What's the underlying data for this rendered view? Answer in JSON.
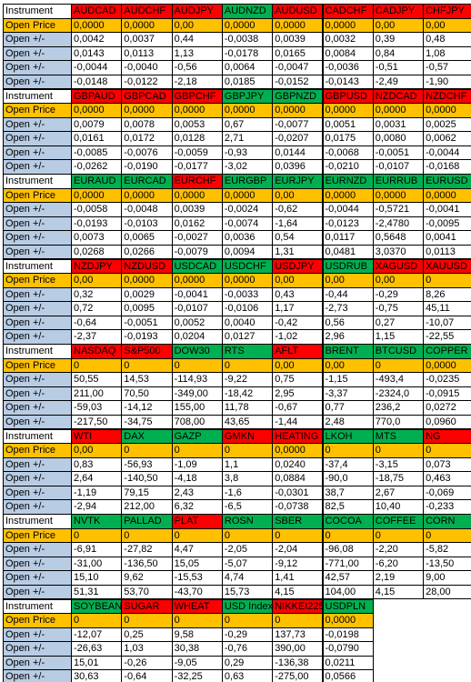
{
  "blocks": [
    {
      "header": "Instrument",
      "open_price_label": "Open Price",
      "instruments": [
        {
          "name": "AUDCAD",
          "color": "#ff0000"
        },
        {
          "name": "AUDCHF",
          "color": "#ff0000"
        },
        {
          "name": "AUDJPY",
          "color": "#ff0000"
        },
        {
          "name": "AUDNZD",
          "color": "#00b050"
        },
        {
          "name": "AUDUSD",
          "color": "#ff0000"
        },
        {
          "name": "CADCHF",
          "color": "#ff0000"
        },
        {
          "name": "CADJPY",
          "color": "#ff0000"
        },
        {
          "name": "CHFJPY",
          "color": "#ff0000"
        }
      ],
      "open_price": [
        "0,0000",
        "0,0000",
        "0,00",
        "0,0000",
        "0,0000",
        "0,0000",
        "0,00",
        "0,00"
      ],
      "rows": [
        {
          "label": "Open +/-",
          "values": [
            "0,0042",
            "0,0037",
            "0,44",
            "-0,0038",
            "0,0039",
            "0,0032",
            "0,39",
            "0,48"
          ]
        },
        {
          "label": "Open +/-",
          "values": [
            "0,0143",
            "0,0113",
            "1,13",
            "-0,0178",
            "0,0165",
            "0,0084",
            "0,84",
            "1,08"
          ]
        },
        {
          "label": "Open +/-",
          "values": [
            "-0,0044",
            "-0,0040",
            "-0,56",
            "0,0064",
            "-0,0047",
            "-0,0036",
            "-0,51",
            "-0,57"
          ]
        },
        {
          "label": "Open +/-",
          "values": [
            "-0,0148",
            "-0,0122",
            "-2,18",
            "0,0185",
            "-0,0152",
            "-0,0143",
            "-2,49",
            "-1,90"
          ]
        }
      ]
    },
    {
      "header": "Instrument",
      "open_price_label": "Open Price",
      "instruments": [
        {
          "name": "GBPAUD",
          "color": "#ff0000"
        },
        {
          "name": "GBPCAD",
          "color": "#ff0000"
        },
        {
          "name": "GBPCHF",
          "color": "#ff0000"
        },
        {
          "name": "GBPJPY",
          "color": "#00b050"
        },
        {
          "name": "GBPNZD",
          "color": "#00b050"
        },
        {
          "name": "GBPUSD",
          "color": "#ff0000"
        },
        {
          "name": "NZDCAD",
          "color": "#ff0000"
        },
        {
          "name": "NZDCHF",
          "color": "#ff0000"
        }
      ],
      "open_price": [
        "0,0000",
        "0,0000",
        "0,0000",
        "0,0000",
        "0,0000",
        "0,0000",
        "0,0000",
        "0,0000"
      ],
      "rows": [
        {
          "label": "Open +/-",
          "values": [
            "0,0079",
            "0,0078",
            "0,0053",
            "0,67",
            "-0,0077",
            "0,0051",
            "0,0031",
            "0,0025"
          ]
        },
        {
          "label": "Open +/-",
          "values": [
            "0,0161",
            "0,0172",
            "0,0128",
            "2,71",
            "-0,0207",
            "0,0175",
            "0,0080",
            "0,0062"
          ]
        },
        {
          "label": "Open +/-",
          "values": [
            "-0,0085",
            "-0,0076",
            "-0,0059",
            "-0,93",
            "0,0144",
            "-0,0068",
            "-0,0051",
            "-0,0044"
          ]
        },
        {
          "label": "Open +/-",
          "values": [
            "-0,0262",
            "-0,0190",
            "-0,0177",
            "-3,02",
            "0,0396",
            "-0,0210",
            "-0,0107",
            "-0,0168"
          ]
        }
      ]
    },
    {
      "header": "Instrument",
      "open_price_label": "Open Price",
      "instruments": [
        {
          "name": "EURAUD",
          "color": "#00b050"
        },
        {
          "name": "EURCAD",
          "color": "#00b050"
        },
        {
          "name": "EURCHF",
          "color": "#ff0000"
        },
        {
          "name": "EURGBP",
          "color": "#00b050"
        },
        {
          "name": "EURJPY",
          "color": "#00b050"
        },
        {
          "name": "EURNZD",
          "color": "#00b050"
        },
        {
          "name": "EURRUB",
          "color": "#00b050"
        },
        {
          "name": "EURUSD",
          "color": "#00b050"
        }
      ],
      "open_price": [
        "0,0000",
        "0,0000",
        "0,0000",
        "0,0000",
        "0,00",
        "0,0000",
        "0,0000",
        "0,0000"
      ],
      "rows": [
        {
          "label": "Open +/-",
          "values": [
            "-0,0058",
            "-0,0048",
            "0,0039",
            "-0,0024",
            "-0,62",
            "-0,0044",
            "-0,5721",
            "-0,0041"
          ]
        },
        {
          "label": "Open +/-",
          "values": [
            "-0,0193",
            "-0,0103",
            "0,0162",
            "-0,0074",
            "-1,64",
            "-0,0123",
            "-2,4780",
            "-0,0095"
          ]
        },
        {
          "label": "Open +/-",
          "values": [
            "0,0073",
            "0,0065",
            "-0,0027",
            "0,0036",
            "0,54",
            "0,0117",
            "0,5648",
            "0,0041"
          ]
        },
        {
          "label": "Open +/-",
          "values": [
            "0,0268",
            "0,0266",
            "-0,0079",
            "0,0094",
            "1,31",
            "0,0481",
            "3,0370",
            "0,0113"
          ]
        }
      ]
    },
    {
      "header": "Instrument",
      "open_price_label": "Open Price",
      "instruments": [
        {
          "name": "NZDJPY",
          "color": "#ff0000"
        },
        {
          "name": "NZDUSD",
          "color": "#ff0000"
        },
        {
          "name": "USDCAD",
          "color": "#00b050"
        },
        {
          "name": "USDCHF",
          "color": "#00b050"
        },
        {
          "name": "USDJPY",
          "color": "#ff0000"
        },
        {
          "name": "USDRUB",
          "color": "#00b050"
        },
        {
          "name": "XAGUSD",
          "color": "#ff0000"
        },
        {
          "name": "XAUUSD",
          "color": "#ff0000"
        }
      ],
      "open_price": [
        "0,00",
        "0,0000",
        "0,0000",
        "0,0000",
        "0,00",
        "0,00",
        "0,00",
        "0"
      ],
      "rows": [
        {
          "label": "Open +/-",
          "values": [
            "0,32",
            "0,0029",
            "-0,0041",
            "-0,0033",
            "0,43",
            "-0,44",
            "-0,29",
            "8,26"
          ]
        },
        {
          "label": "Open +/-",
          "values": [
            "0,72",
            "0,0095",
            "-0,0107",
            "-0,0106",
            "1,17",
            "-2,73",
            "-0,75",
            "45,11"
          ]
        },
        {
          "label": "Open +/-",
          "values": [
            "-0,64",
            "-0,0051",
            "0,0052",
            "0,0040",
            "-0,42",
            "0,56",
            "0,27",
            "-10,07"
          ]
        },
        {
          "label": "Open +/-",
          "values": [
            "-2,37",
            "-0,0193",
            "0,0204",
            "0,0127",
            "-1,02",
            "2,96",
            "1,15",
            "-22,55"
          ]
        }
      ]
    },
    {
      "header": "Instrument",
      "open_price_label": "Open Price",
      "instruments": [
        {
          "name": "NASDAQ",
          "color": "#ff0000"
        },
        {
          "name": "S&P500",
          "color": "#ff0000"
        },
        {
          "name": "DOW30",
          "color": "#00b050"
        },
        {
          "name": "RTS",
          "color": "#00b050"
        },
        {
          "name": "AFLT",
          "color": "#ff0000"
        },
        {
          "name": "BRENT",
          "color": "#00b050"
        },
        {
          "name": "BTCUSD",
          "color": "#00b050"
        },
        {
          "name": "COPPER",
          "color": "#00b050"
        }
      ],
      "open_price": [
        "0",
        "0",
        "0",
        "0",
        "0,00",
        "0,00",
        "0",
        "0,0000"
      ],
      "rows": [
        {
          "label": "Open +/-",
          "values": [
            "50,55",
            "14,53",
            "-114,93",
            "-9,22",
            "0,75",
            "-1,15",
            "-493,4",
            "-0,0235"
          ]
        },
        {
          "label": "Open +/-",
          "values": [
            "211,00",
            "70,50",
            "-349,00",
            "-18,42",
            "2,95",
            "-3,37",
            "-2324,0",
            "-0,0915"
          ]
        },
        {
          "label": "Open +/-",
          "values": [
            "-59,03",
            "-14,12",
            "155,00",
            "11,78",
            "-0,67",
            "0,77",
            "236,2",
            "0,0272"
          ]
        },
        {
          "label": "Open +/-",
          "values": [
            "-217,50",
            "-34,75",
            "708,00",
            "43,65",
            "-1,44",
            "2,48",
            "770,0",
            "0,0960"
          ]
        }
      ]
    },
    {
      "header": "Instrument",
      "open_price_label": "Open Price",
      "instruments": [
        {
          "name": "WTI",
          "color": "#ff0000"
        },
        {
          "name": "DAX",
          "color": "#00b050"
        },
        {
          "name": "GAZP",
          "color": "#00b050"
        },
        {
          "name": "GMKN",
          "color": "#ff0000"
        },
        {
          "name": "HEATING",
          "color": "#ff0000"
        },
        {
          "name": "LKOH",
          "color": "#00b050"
        },
        {
          "name": "MTS",
          "color": "#00b050"
        },
        {
          "name": "NG",
          "color": "#ff0000"
        }
      ],
      "open_price": [
        "0,00",
        "0",
        "0",
        "0",
        "0,0000",
        "0",
        "0",
        "0"
      ],
      "rows": [
        {
          "label": "Open +/-",
          "values": [
            "0,83",
            "-56,93",
            "-1,09",
            "1,1",
            "0,0240",
            "-37,4",
            "-3,15",
            "0,073"
          ]
        },
        {
          "label": "Open +/-",
          "values": [
            "2,64",
            "-140,50",
            "-4,18",
            "3,8",
            "0,0884",
            "-90,0",
            "-18,75",
            "0,463"
          ]
        },
        {
          "label": "Open +/-",
          "values": [
            "-1,19",
            "79,15",
            "2,43",
            "-1,6",
            "-0,0301",
            "38,7",
            "2,67",
            "-0,069"
          ]
        },
        {
          "label": "Open +/-",
          "values": [
            "-2,94",
            "212,00",
            "6,32",
            "-6,5",
            "-0,0738",
            "82,5",
            "10,40",
            "-0,233"
          ]
        }
      ]
    },
    {
      "header": "Instrument",
      "open_price_label": "Open Price",
      "instruments": [
        {
          "name": "NVTK",
          "color": "#00b050"
        },
        {
          "name": "PALLAD",
          "color": "#00b050"
        },
        {
          "name": "PLAT",
          "color": "#ff0000"
        },
        {
          "name": "ROSN",
          "color": "#00b050"
        },
        {
          "name": "SBER",
          "color": "#00b050"
        },
        {
          "name": "COCOA",
          "color": "#00b050"
        },
        {
          "name": "COFFEE",
          "color": "#00b050"
        },
        {
          "name": "CORN",
          "color": "#00b050"
        }
      ],
      "open_price": [
        "0",
        "0",
        "0",
        "0",
        "0",
        "0",
        "0",
        "0"
      ],
      "rows": [
        {
          "label": "Open +/-",
          "values": [
            "-6,91",
            "-27,82",
            "4,47",
            "-2,05",
            "-2,04",
            "-96,08",
            "-2,20",
            "-5,82"
          ]
        },
        {
          "label": "Open +/-",
          "values": [
            "-31,00",
            "-136,50",
            "15,05",
            "-5,07",
            "-9,12",
            "-771,00",
            "-6,20",
            "-13,50"
          ]
        },
        {
          "label": "Open +/-",
          "values": [
            "15,10",
            "9,62",
            "-15,53",
            "4,74",
            "1,41",
            "42,57",
            "2,19",
            "9,00"
          ]
        },
        {
          "label": "Open +/-",
          "values": [
            "51,31",
            "53,70",
            "-43,70",
            "15,73",
            "4,15",
            "104,00",
            "4,15",
            "28,00"
          ]
        }
      ]
    },
    {
      "header": "Instrument",
      "open_price_label": "Open Price",
      "instruments": [
        {
          "name": "SOYBEAN",
          "color": "#00b050"
        },
        {
          "name": "SUGAR",
          "color": "#ff0000"
        },
        {
          "name": "WHEAT",
          "color": "#ff0000"
        },
        {
          "name": "USD Index",
          "color": "#00b050"
        },
        {
          "name": "NIKKEI225",
          "color": "#ff0000"
        },
        {
          "name": "USDPLN",
          "color": "#00b050"
        }
      ],
      "open_price": [
        "0",
        "0",
        "0",
        "0",
        "0",
        "0,0000"
      ],
      "rows": [
        {
          "label": "Open +/-",
          "values": [
            "-12,07",
            "0,25",
            "9,58",
            "-0,29",
            "137,73",
            "-0,0198"
          ]
        },
        {
          "label": "Open +/-",
          "values": [
            "-26,63",
            "1,03",
            "30,38",
            "-0,76",
            "390,00",
            "-0,0790"
          ]
        },
        {
          "label": "Open +/-",
          "values": [
            "15,01",
            "-0,26",
            "-9,05",
            "0,29",
            "-136,38",
            "0,0211"
          ]
        },
        {
          "label": "Open +/-",
          "values": [
            "30,63",
            "-0,64",
            "-32,25",
            "0,63",
            "-275,00",
            "0,0566"
          ]
        }
      ]
    }
  ]
}
